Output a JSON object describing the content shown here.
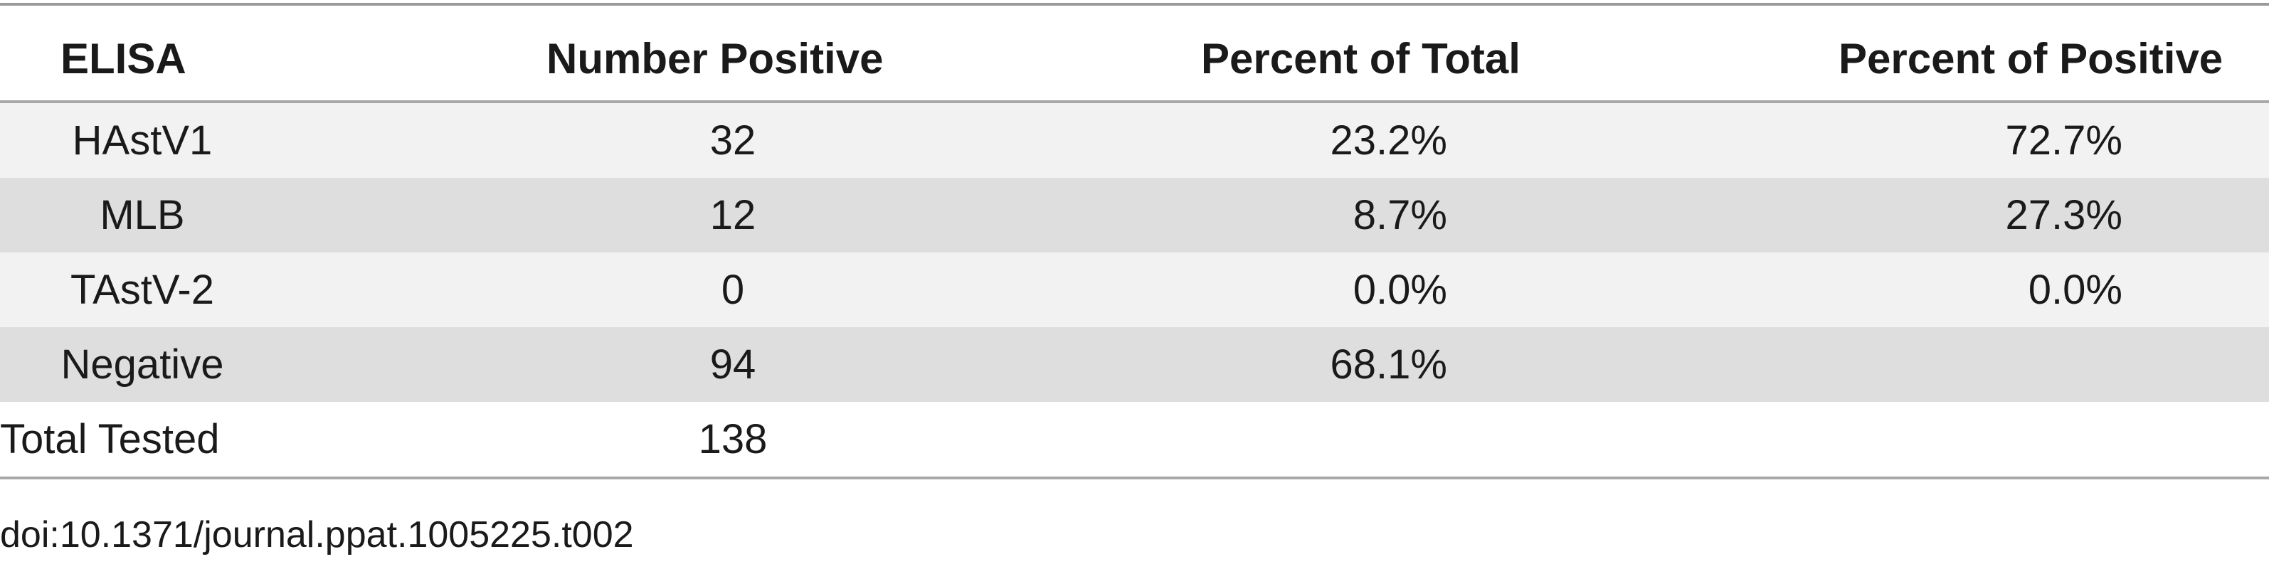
{
  "table": {
    "headers": [
      "ELISA",
      "Number Positive",
      "Percent of Total",
      "Percent of Positive"
    ],
    "rows": [
      {
        "elisa": "HAstV1",
        "number_positive": "32",
        "percent_total": "23.2%",
        "percent_positive": "72.7%"
      },
      {
        "elisa": "MLB",
        "number_positive": "12",
        "percent_total": "8.7%",
        "percent_positive": "27.3%"
      },
      {
        "elisa": "TAstV-2",
        "number_positive": "0",
        "percent_total": "0.0%",
        "percent_positive": "0.0%"
      },
      {
        "elisa": "Negative",
        "number_positive": "94",
        "percent_total": "68.1%",
        "percent_positive": ""
      }
    ],
    "total": {
      "label": "Total Tested",
      "number": "138"
    }
  },
  "doi": "doi:10.1371/journal.ppat.1005225.t002",
  "colors": {
    "row_light": "#f2f2f2",
    "row_dark": "#dedede",
    "rule": "#9a9a9a",
    "text": "#1a1a1a"
  }
}
